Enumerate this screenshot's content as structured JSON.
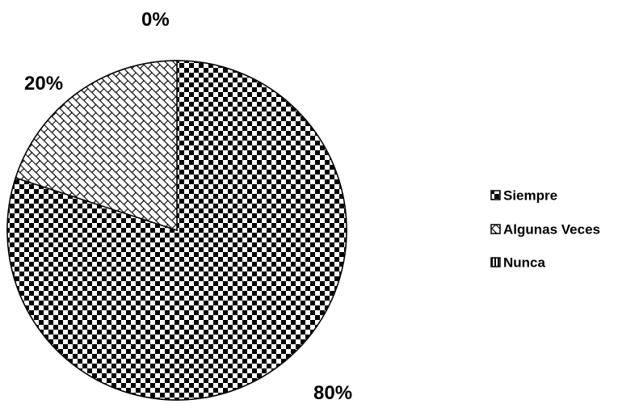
{
  "chart_data": {
    "type": "pie",
    "title": "",
    "categories": [
      "Siempre",
      "Algunas Veces",
      "Nunca"
    ],
    "values": [
      80,
      20,
      0
    ],
    "data_labels": [
      "80%",
      "20%",
      "0%"
    ],
    "legend": {
      "placement": "right",
      "entries": [
        "Siempre",
        "Algunas Veces",
        "Nunca"
      ]
    },
    "patterns": [
      "checkerboard",
      "diagonal-brick",
      "vertical-stripes"
    ],
    "colors": {
      "ink": "#000000",
      "background": "#ffffff"
    }
  }
}
